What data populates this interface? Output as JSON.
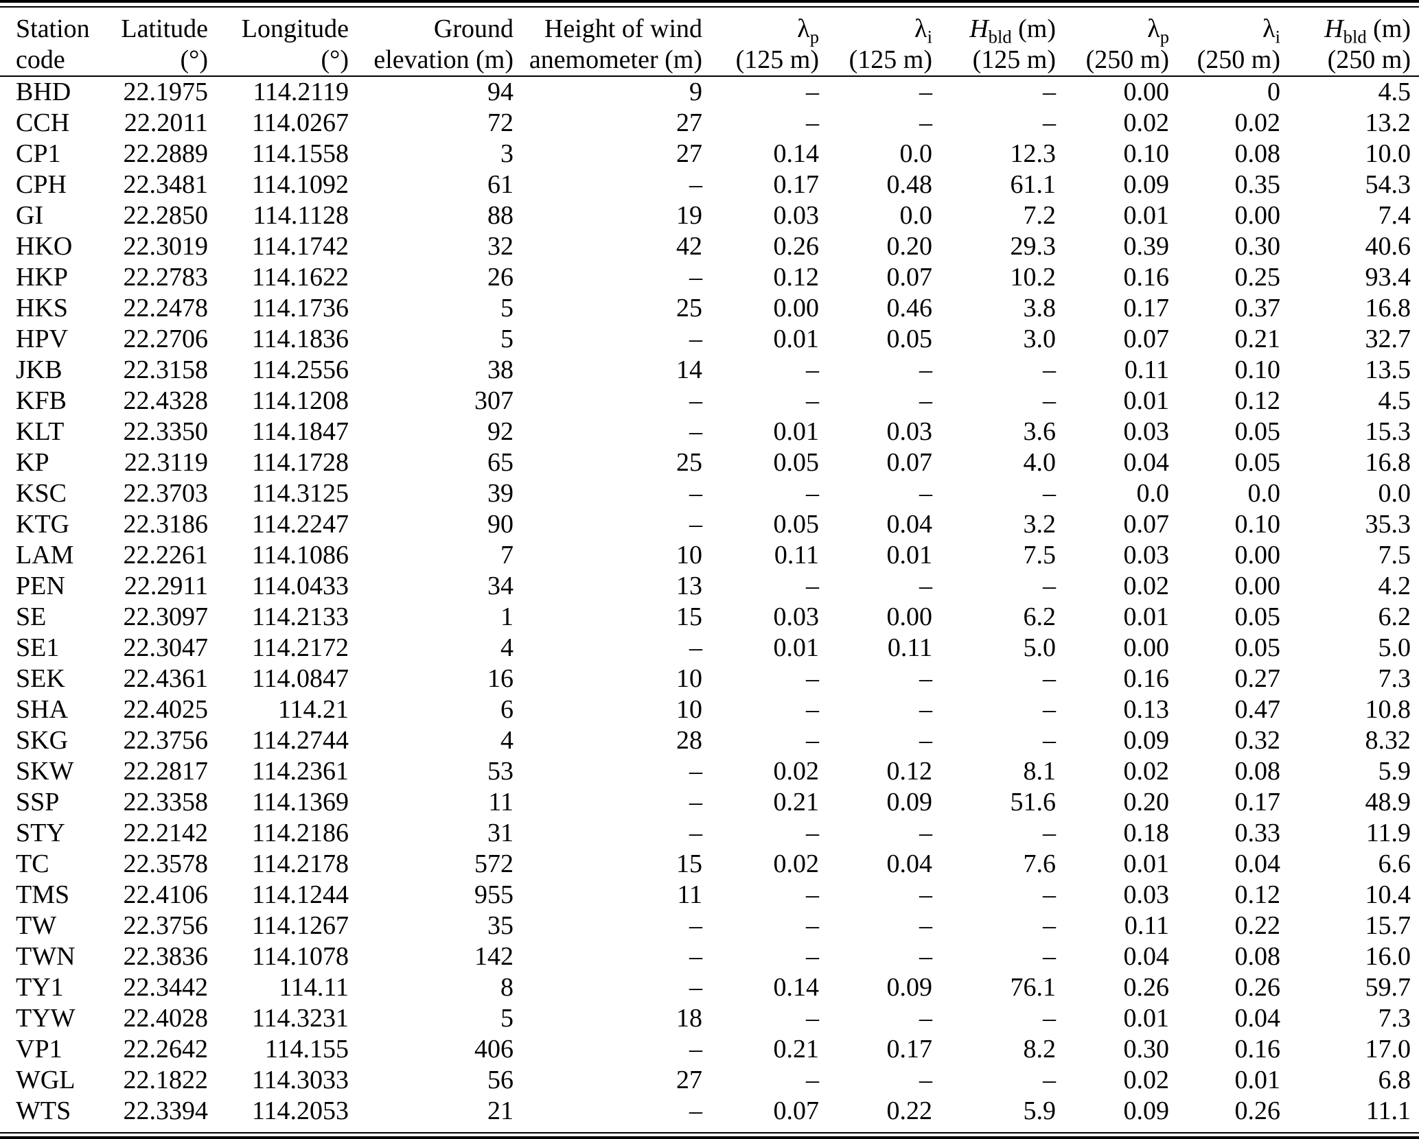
{
  "table": {
    "columns": [
      {
        "l1": "Station",
        "l2": "code"
      },
      {
        "l1": "Latitude",
        "l2": "(°)"
      },
      {
        "l1": "Longitude",
        "l2": "(°)"
      },
      {
        "l1": "Ground",
        "l2": "elevation (m)"
      },
      {
        "l1": "Height of wind",
        "l2": "anemometer (m)"
      },
      {
        "sym": "λ",
        "sub": "p",
        "l2": "(125 m)"
      },
      {
        "sym": "λ",
        "sub": "i",
        "l2": "(125 m)"
      },
      {
        "sym": "H",
        "sub": "bld",
        "unit": " (m)",
        "l2": "(125 m)"
      },
      {
        "sym": "λ",
        "sub": "p",
        "l2": "(250 m)"
      },
      {
        "sym": "λ",
        "sub": "i",
        "l2": "(250 m)"
      },
      {
        "sym": "H",
        "sub": "bld",
        "unit": " (m)",
        "l2": "(250 m)"
      }
    ],
    "rows": [
      [
        "BHD",
        "22.1975",
        "114.2119",
        "94",
        "9",
        "–",
        "–",
        "–",
        "0.00",
        "0",
        "4.5"
      ],
      [
        "CCH",
        "22.2011",
        "114.0267",
        "72",
        "27",
        "–",
        "–",
        "–",
        "0.02",
        "0.02",
        "13.2"
      ],
      [
        "CP1",
        "22.2889",
        "114.1558",
        "3",
        "27",
        "0.14",
        "0.0",
        "12.3",
        "0.10",
        "0.08",
        "10.0"
      ],
      [
        "CPH",
        "22.3481",
        "114.1092",
        "61",
        "–",
        "0.17",
        "0.48",
        "61.1",
        "0.09",
        "0.35",
        "54.3"
      ],
      [
        "GI",
        "22.2850",
        "114.1128",
        "88",
        "19",
        "0.03",
        "0.0",
        "7.2",
        "0.01",
        "0.00",
        "7.4"
      ],
      [
        "HKO",
        "22.3019",
        "114.1742",
        "32",
        "42",
        "0.26",
        "0.20",
        "29.3",
        "0.39",
        "0.30",
        "40.6"
      ],
      [
        "HKP",
        "22.2783",
        "114.1622",
        "26",
        "–",
        "0.12",
        "0.07",
        "10.2",
        "0.16",
        "0.25",
        "93.4"
      ],
      [
        "HKS",
        "22.2478",
        "114.1736",
        "5",
        "25",
        "0.00",
        "0.46",
        "3.8",
        "0.17",
        "0.37",
        "16.8"
      ],
      [
        "HPV",
        "22.2706",
        "114.1836",
        "5",
        "–",
        "0.01",
        "0.05",
        "3.0",
        "0.07",
        "0.21",
        "32.7"
      ],
      [
        "JKB",
        "22.3158",
        "114.2556",
        "38",
        "14",
        "–",
        "–",
        "–",
        "0.11",
        "0.10",
        "13.5"
      ],
      [
        "KFB",
        "22.4328",
        "114.1208",
        "307",
        "–",
        "–",
        "–",
        "–",
        "0.01",
        "0.12",
        "4.5"
      ],
      [
        "KLT",
        "22.3350",
        "114.1847",
        "92",
        "–",
        "0.01",
        "0.03",
        "3.6",
        "0.03",
        "0.05",
        "15.3"
      ],
      [
        "KP",
        "22.3119",
        "114.1728",
        "65",
        "25",
        "0.05",
        "0.07",
        "4.0",
        "0.04",
        "0.05",
        "16.8"
      ],
      [
        "KSC",
        "22.3703",
        "114.3125",
        "39",
        "–",
        "–",
        "–",
        "–",
        "0.0",
        "0.0",
        "0.0"
      ],
      [
        "KTG",
        "22.3186",
        "114.2247",
        "90",
        "–",
        "0.05",
        "0.04",
        "3.2",
        "0.07",
        "0.10",
        "35.3"
      ],
      [
        "LAM",
        "22.2261",
        "114.1086",
        "7",
        "10",
        "0.11",
        "0.01",
        "7.5",
        "0.03",
        "0.00",
        "7.5"
      ],
      [
        "PEN",
        "22.2911",
        "114.0433",
        "34",
        "13",
        "–",
        "–",
        "–",
        "0.02",
        "0.00",
        "4.2"
      ],
      [
        "SE",
        "22.3097",
        "114.2133",
        "1",
        "15",
        "0.03",
        "0.00",
        "6.2",
        "0.01",
        "0.05",
        "6.2"
      ],
      [
        "SE1",
        "22.3047",
        "114.2172",
        "4",
        "–",
        "0.01",
        "0.11",
        "5.0",
        "0.00",
        "0.05",
        "5.0"
      ],
      [
        "SEK",
        "22.4361",
        "114.0847",
        "16",
        "10",
        "–",
        "–",
        "–",
        "0.16",
        "0.27",
        "7.3"
      ],
      [
        "SHA",
        "22.4025",
        "114.21",
        "6",
        "10",
        "–",
        "–",
        "–",
        "0.13",
        "0.47",
        "10.8"
      ],
      [
        "SKG",
        "22.3756",
        "114.2744",
        "4",
        "28",
        "–",
        "–",
        "–",
        "0.09",
        "0.32",
        "8.32"
      ],
      [
        "SKW",
        "22.2817",
        "114.2361",
        "53",
        "–",
        "0.02",
        "0.12",
        "8.1",
        "0.02",
        "0.08",
        "5.9"
      ],
      [
        "SSP",
        "22.3358",
        "114.1369",
        "11",
        "–",
        "0.21",
        "0.09",
        "51.6",
        "0.20",
        "0.17",
        "48.9"
      ],
      [
        "STY",
        "22.2142",
        "114.2186",
        "31",
        "–",
        "–",
        "–",
        "–",
        "0.18",
        "0.33",
        "11.9"
      ],
      [
        "TC",
        "22.3578",
        "114.2178",
        "572",
        "15",
        "0.02",
        "0.04",
        "7.6",
        "0.01",
        "0.04",
        "6.6"
      ],
      [
        "TMS",
        "22.4106",
        "114.1244",
        "955",
        "11",
        "–",
        "–",
        "–",
        "0.03",
        "0.12",
        "10.4"
      ],
      [
        "TW",
        "22.3756",
        "114.1267",
        "35",
        "–",
        "–",
        "–",
        "–",
        "0.11",
        "0.22",
        "15.7"
      ],
      [
        "TWN",
        "22.3836",
        "114.1078",
        "142",
        "–",
        "–",
        "–",
        "–",
        "0.04",
        "0.08",
        "16.0"
      ],
      [
        "TY1",
        "22.3442",
        "114.11",
        "8",
        "–",
        "0.14",
        "0.09",
        "76.1",
        "0.26",
        "0.26",
        "59.7"
      ],
      [
        "TYW",
        "22.4028",
        "114.3231",
        "5",
        "18",
        "–",
        "–",
        "–",
        "0.01",
        "0.04",
        "7.3"
      ],
      [
        "VP1",
        "22.2642",
        "114.155",
        "406",
        "–",
        "0.21",
        "0.17",
        "8.2",
        "0.30",
        "0.16",
        "17.0"
      ],
      [
        "WGL",
        "22.1822",
        "114.3033",
        "56",
        "27",
        "–",
        "–",
        "–",
        "0.02",
        "0.01",
        "6.8"
      ],
      [
        "WTS",
        "22.3394",
        "114.2053",
        "21",
        "–",
        "0.07",
        "0.22",
        "5.9",
        "0.09",
        "0.26",
        "11.1"
      ]
    ]
  }
}
